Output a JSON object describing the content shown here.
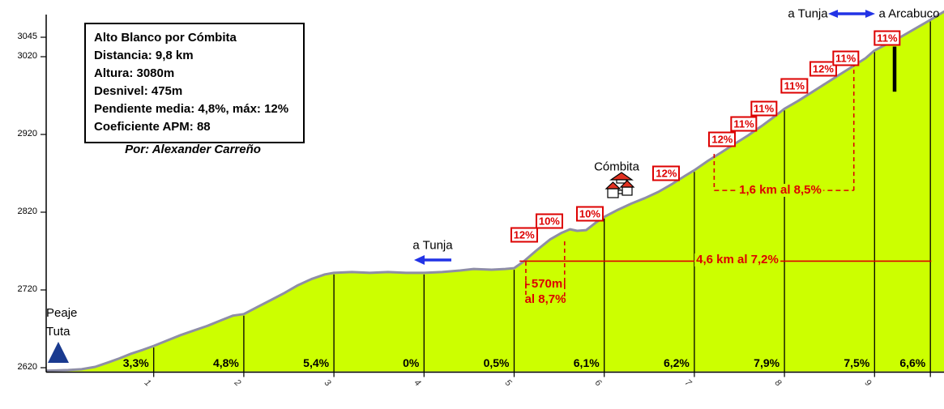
{
  "colors": {
    "profile_fill": "#ccff00",
    "profile_stroke": "#8e8ea6",
    "annotation_red": "#dd0000",
    "arrow_blue": "#2233e6",
    "landmark_blue": "#1a3a8f",
    "axis_black": "#000000"
  },
  "info_box": {
    "lines": [
      "Alto Blanco por Cómbita",
      "Distancia: 9,8 km",
      "Altura: 3080m",
      "Desnivel: 475m",
      "Pendiente media: 4,8%, máx: 12%",
      "Coeficiente APM: 88"
    ]
  },
  "author": "Por: Alexander Carreño",
  "landmarks": {
    "peaje": {
      "lines": [
        "Peaje",
        "Tuta"
      ]
    },
    "tunja_mid": "a Tunja",
    "combita": "Cómbita",
    "tunja_top": "a Tunja",
    "arcabuco_top": "a Arcabuco"
  },
  "chart_data": {
    "type": "area",
    "title": "Alto Blanco por Cómbita",
    "x_unit": "km",
    "y_unit": "m",
    "x_range": [
      0,
      9.8
    ],
    "y_range": [
      2620,
      3080
    ],
    "grid": false,
    "y_ticks": [
      3045,
      3020,
      2920,
      2820,
      2720,
      2620
    ],
    "x_ticks": [
      1,
      2,
      3,
      4,
      5,
      6,
      7,
      8,
      9
    ],
    "gridline_kms": [
      1,
      2,
      3,
      4,
      5,
      6,
      7,
      8,
      9,
      9.62
    ],
    "profile": [
      [
        -0.19,
        2616
      ],
      [
        0.05,
        2617
      ],
      [
        0.2,
        2618
      ],
      [
        0.35,
        2621
      ],
      [
        0.5,
        2627
      ],
      [
        0.62,
        2632
      ],
      [
        0.75,
        2638
      ],
      [
        0.88,
        2643
      ],
      [
        1.0,
        2648
      ],
      [
        1.15,
        2655
      ],
      [
        1.3,
        2662
      ],
      [
        1.45,
        2668
      ],
      [
        1.6,
        2674
      ],
      [
        1.75,
        2681
      ],
      [
        1.88,
        2687
      ],
      [
        2.0,
        2689
      ],
      [
        2.15,
        2698
      ],
      [
        2.3,
        2707
      ],
      [
        2.45,
        2716
      ],
      [
        2.6,
        2726
      ],
      [
        2.75,
        2734
      ],
      [
        2.9,
        2740
      ],
      [
        3.0,
        2742
      ],
      [
        3.2,
        2743
      ],
      [
        3.4,
        2742
      ],
      [
        3.6,
        2743
      ],
      [
        3.8,
        2742
      ],
      [
        4.0,
        2742
      ],
      [
        4.2,
        2743
      ],
      [
        4.4,
        2745
      ],
      [
        4.55,
        2747
      ],
      [
        4.75,
        2746
      ],
      [
        4.9,
        2747
      ],
      [
        5.0,
        2748
      ],
      [
        5.1,
        2756
      ],
      [
        5.25,
        2771
      ],
      [
        5.4,
        2785
      ],
      [
        5.52,
        2793
      ],
      [
        5.62,
        2798
      ],
      [
        5.7,
        2796
      ],
      [
        5.8,
        2797
      ],
      [
        5.9,
        2806
      ],
      [
        6.0,
        2814
      ],
      [
        6.15,
        2823
      ],
      [
        6.3,
        2831
      ],
      [
        6.45,
        2838
      ],
      [
        6.6,
        2846
      ],
      [
        6.75,
        2856
      ],
      [
        6.9,
        2867
      ],
      [
        7.0,
        2874
      ],
      [
        7.15,
        2886
      ],
      [
        7.3,
        2897
      ],
      [
        7.45,
        2908
      ],
      [
        7.6,
        2919
      ],
      [
        7.75,
        2931
      ],
      [
        7.9,
        2944
      ],
      [
        8.0,
        2953
      ],
      [
        8.15,
        2963
      ],
      [
        8.3,
        2974
      ],
      [
        8.45,
        2985
      ],
      [
        8.6,
        2996
      ],
      [
        8.75,
        3007
      ],
      [
        8.9,
        3018
      ],
      [
        9.0,
        3028
      ],
      [
        9.15,
        3037
      ],
      [
        9.3,
        3046
      ],
      [
        9.45,
        3056
      ],
      [
        9.6,
        3066
      ],
      [
        9.8,
        3080
      ]
    ],
    "segment_grades": [
      {
        "from": 0,
        "to": 1,
        "label": "3,3%"
      },
      {
        "from": 1,
        "to": 2,
        "label": "4,8%"
      },
      {
        "from": 2,
        "to": 3,
        "label": "5,4%"
      },
      {
        "from": 3,
        "to": 4,
        "label": "0%"
      },
      {
        "from": 4,
        "to": 5,
        "label": "0,5%"
      },
      {
        "from": 5,
        "to": 6,
        "label": "6,1%"
      },
      {
        "from": 6,
        "to": 7,
        "label": "6,2%"
      },
      {
        "from": 7,
        "to": 8,
        "label": "7,9%"
      },
      {
        "from": 8,
        "to": 9,
        "label": "7,5%"
      },
      {
        "from": 9,
        "to": 9.62,
        "label": "6,6%"
      }
    ],
    "gradient_markers": [
      {
        "label": "12%",
        "km": 5.11,
        "elev": 2791
      },
      {
        "label": "10%",
        "km": 5.39,
        "elev": 2809
      },
      {
        "label": "10%",
        "km": 5.84,
        "elev": 2818
      },
      {
        "label": "12%",
        "km": 6.69,
        "elev": 2870
      },
      {
        "label": "12%",
        "km": 7.31,
        "elev": 2914
      },
      {
        "label": "11%",
        "km": 7.55,
        "elev": 2934
      },
      {
        "label": "11%",
        "km": 7.77,
        "elev": 2953
      },
      {
        "label": "11%",
        "km": 8.11,
        "elev": 2982
      },
      {
        "label": "12%",
        "km": 8.43,
        "elev": 3004
      },
      {
        "label": "11%",
        "km": 8.68,
        "elev": 3018
      },
      {
        "label": "11%",
        "km": 9.14,
        "elev": 3044
      }
    ],
    "annotations": {
      "section_4_6km": {
        "label": "4,6 km al 7,2%",
        "elev": 2757,
        "from_km": 5.06,
        "to_km": 9.63
      },
      "span_570m": {
        "label_top": "570m",
        "label_bottom": "al 8,7%",
        "from_km": 5.13,
        "to_km": 5.56,
        "connector_elev": 2727
      },
      "span_1_6km": {
        "label": "1,6 km al 8,5%",
        "from_km": 7.22,
        "to_km": 8.77,
        "line_elev": 2848,
        "left_top_elev": 2895,
        "right_top_elev": 3022
      },
      "summit_bar": {
        "km": 9.22,
        "elev_top": 3033,
        "elev_bottom": 2975
      }
    }
  }
}
